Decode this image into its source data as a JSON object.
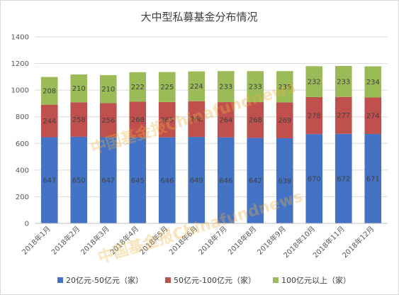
{
  "chart_data": {
    "type": "bar",
    "stacked": true,
    "title": "大中型私募基金分布情况",
    "categories": [
      "2018年1月",
      "2018年2月",
      "2018年3月",
      "2018年4月",
      "2018年5月",
      "2018年6月",
      "2018年7月",
      "2018年8月",
      "2018年9月",
      "2018年10月",
      "2018年11月",
      "2018年12月"
    ],
    "series": [
      {
        "name": "20亿元-50亿元（家）",
        "color": "#4472c4",
        "values": [
          647,
          650,
          647,
          645,
          646,
          649,
          646,
          642,
          639,
          670,
          672,
          671
        ]
      },
      {
        "name": "50亿元-100亿元（家）",
        "color": "#c0504d",
        "values": [
          244,
          258,
          256,
          268,
          265,
          268,
          264,
          268,
          269,
          278,
          277,
          274
        ]
      },
      {
        "name": "100亿元以上（家）",
        "color": "#9bbb59",
        "values": [
          208,
          210,
          210,
          222,
          225,
          224,
          233,
          233,
          235,
          232,
          233,
          234
        ]
      }
    ],
    "data_labels": [
      [
        "647",
        "650",
        "647",
        "645",
        "646",
        "649",
        "646",
        "642",
        "639",
        "670",
        "672",
        "671"
      ],
      [
        "244",
        "258",
        "256",
        "268",
        "265",
        "268",
        "264",
        "268",
        "269",
        "278",
        "277",
        "274"
      ],
      [
        "208",
        "210",
        "210",
        "222",
        "225",
        "224",
        "233",
        "233",
        "235",
        "232",
        "233",
        "234"
      ]
    ],
    "ylim": [
      0,
      1400
    ],
    "yticks": [
      0,
      200,
      400,
      600,
      800,
      1000,
      1200,
      1400
    ],
    "grid": true,
    "legend_position": "bottom",
    "watermarks": [
      "中国基金报Chinafundnews",
      "中国基金报Chinafundnews"
    ]
  }
}
